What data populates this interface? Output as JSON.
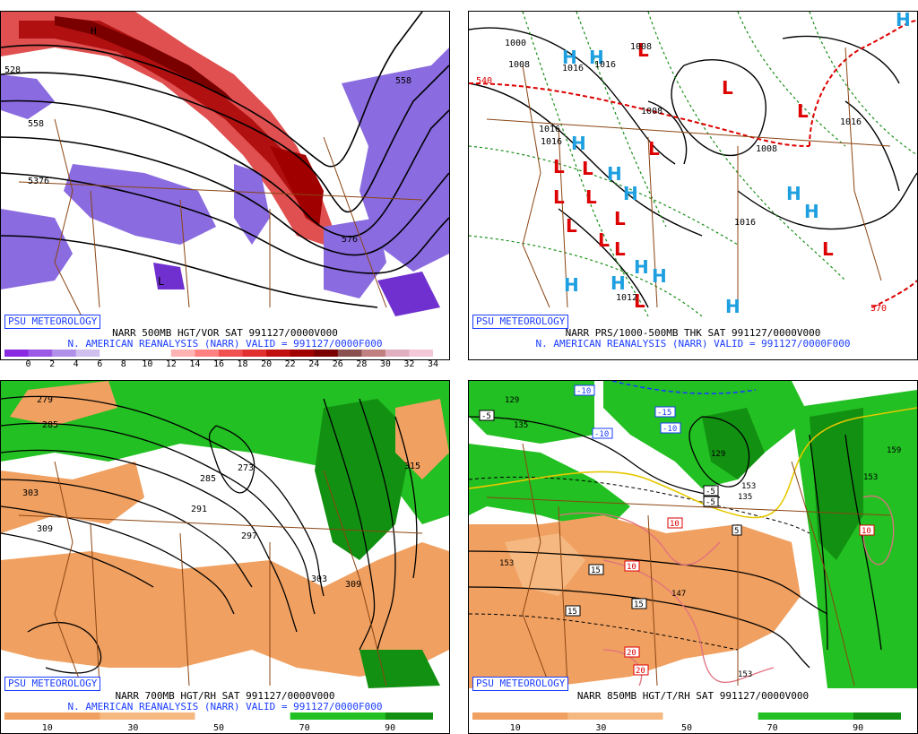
{
  "panels": [
    {
      "badge": "PSU METEOROLOGY",
      "line1": "NARR 500MB HGT/VOR SAT 991127/0000V000",
      "line2": "N. AMERICAN REANALYSIS (NARR) VALID = 991127/0000F000",
      "colorbar": {
        "colors": [
          "#8a2be2",
          "#9b59e6",
          "#b090e8",
          "#cfc0f0",
          "#ffffff",
          "#ffffff",
          "#ffffff",
          "#ffb3b3",
          "#ff8080",
          "#f05050",
          "#e03030",
          "#c01010",
          "#a00000",
          "#7a0000",
          "#8a5050",
          "#c08080",
          "#e0b0c0",
          "#f4c8d8"
        ],
        "ticks": [
          "0",
          "2",
          "4",
          "6",
          "8",
          "10",
          "12",
          "14",
          "16",
          "18",
          "20",
          "22",
          "24",
          "26",
          "28",
          "30",
          "32",
          "34"
        ]
      },
      "labels": {
        "h1": "H",
        "l1": "L",
        "c1": "576",
        "c2": "528",
        "c3": "558",
        "c4": "5376",
        "c5": "558"
      }
    },
    {
      "badge": "PSU METEOROLOGY",
      "line1": "NARR PRS/1000-500MB THK SAT 991127/0000V000",
      "line2": "N. AMERICAN REANALYSIS (NARR) VALID = 991127/0000F000",
      "labels": {
        "p1": "1008",
        "p2": "1000",
        "p3": "1016",
        "p4": "1016",
        "p5": "1016",
        "p6": "1016",
        "p7": "1008",
        "p8": "1008",
        "p9": "1008",
        "p10": "1016",
        "p11": "540",
        "p12": "570",
        "p13": "1016",
        "p14": "1012"
      },
      "high_letter": "H",
      "low_letter": "L"
    },
    {
      "badge": "PSU METEOROLOGY",
      "line1": "NARR 700MB HGT/RH SAT 991127/0000V000",
      "line2": "N. AMERICAN REANALYSIS (NARR) VALID = 991127/0000F000",
      "colorbar": {
        "colors": [
          "#f0a060",
          "#f0a060",
          "#f5b880",
          "#f5b880",
          "#ffffff",
          "#ffffff",
          "#22c022",
          "#22c022",
          "#129012"
        ],
        "ticks": [
          "10",
          "30",
          "50",
          "70",
          "90"
        ]
      },
      "labels": {
        "h1": "279",
        "h2": "285",
        "h3": "303",
        "h4": "309",
        "h5": "285",
        "h6": "291",
        "h7": "297",
        "h8": "273",
        "h9": "315",
        "h10": "303",
        "h11": "309"
      }
    },
    {
      "badge": "PSU METEOROLOGY",
      "line1": "NARR 850MB HGT/T/RH SAT 991127/0000V000",
      "line2": "",
      "colorbar": {
        "colors": [
          "#f0a060",
          "#f0a060",
          "#f5b880",
          "#f5b880",
          "#ffffff",
          "#ffffff",
          "#22c022",
          "#22c022",
          "#129012"
        ],
        "ticks": [
          "10",
          "30",
          "50",
          "70",
          "90"
        ]
      },
      "labels": {
        "t1": "-10",
        "t2": "-15",
        "t3": "-10",
        "t4": "-5",
        "t5": "-10",
        "t6": "-5",
        "t7": "10",
        "t8": "5",
        "t9": "15",
        "t10": "10",
        "t11": "15",
        "t12": "15",
        "t13": "20",
        "t14": "20",
        "t15": "10",
        "t16": "-5",
        "h1": "129",
        "h2": "135",
        "h3": "129",
        "h4": "135",
        "h5": "153",
        "h6": "153",
        "h7": "147",
        "h8": "153",
        "h9": "159",
        "h10": "153"
      }
    }
  ]
}
